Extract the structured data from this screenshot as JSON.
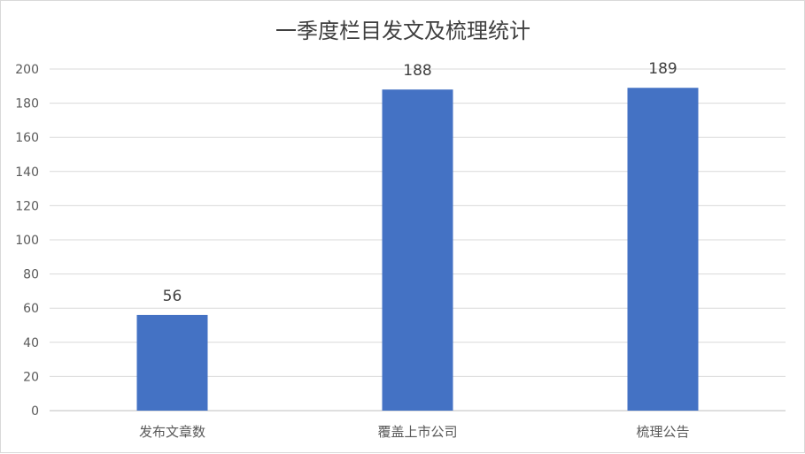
{
  "chart_data": {
    "type": "bar",
    "title": "一季度栏目发文及梳理统计",
    "categories": [
      "发布文章数",
      "覆盖上市公司",
      "梳理公告"
    ],
    "values": [
      56,
      188,
      189
    ],
    "ylim": [
      0,
      200
    ],
    "yticks": [
      0,
      20,
      40,
      60,
      80,
      100,
      120,
      140,
      160,
      180,
      200
    ],
    "grid": true,
    "data_labels": true,
    "bar_color": "#4472C4"
  }
}
